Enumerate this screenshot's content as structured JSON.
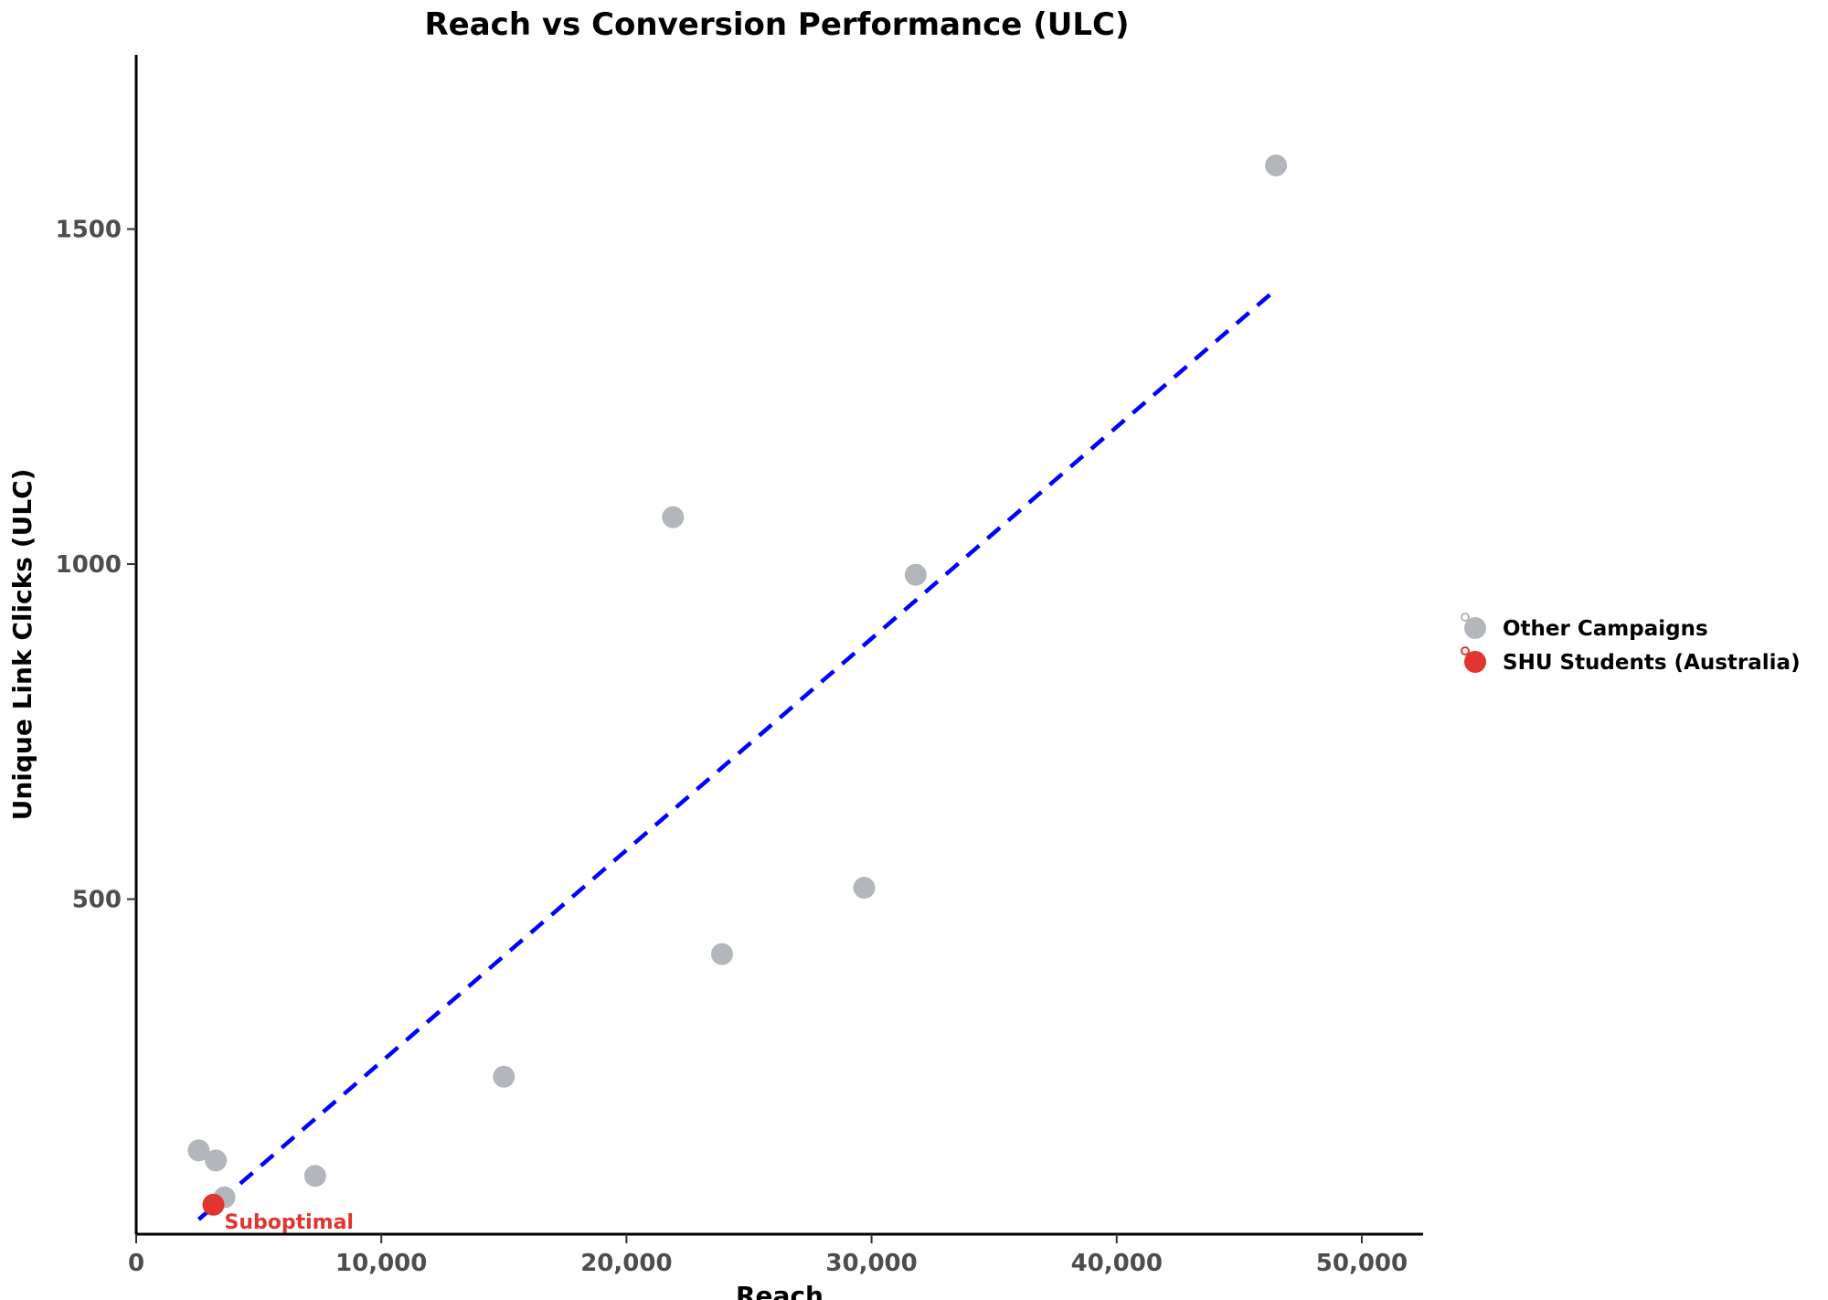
{
  "chart_data": {
    "type": "scatter",
    "title": "Reach vs Conversion Performance (ULC)",
    "xlabel": "Reach",
    "ylabel": "Unique Link Clicks (ULC)",
    "xlim": [
      0,
      52500
    ],
    "ylim": [
      0,
      1760
    ],
    "x_ticks": [
      0,
      10000,
      20000,
      30000,
      40000,
      50000
    ],
    "x_tick_labels": [
      "0",
      "10,000",
      "20,000",
      "30,000",
      "40,000",
      "50,000"
    ],
    "y_ticks": [
      500,
      1000,
      1500
    ],
    "y_tick_labels": [
      "500",
      "1000",
      "1500"
    ],
    "grid": false,
    "legend_position": "right",
    "series": [
      {
        "name": "Other Campaigns",
        "color": "#b3b7bb",
        "points": [
          {
            "x": 2550,
            "y": 125
          },
          {
            "x": 3250,
            "y": 110
          },
          {
            "x": 3600,
            "y": 55
          },
          {
            "x": 7300,
            "y": 87
          },
          {
            "x": 15000,
            "y": 235
          },
          {
            "x": 21900,
            "y": 1070
          },
          {
            "x": 23900,
            "y": 418
          },
          {
            "x": 29700,
            "y": 517
          },
          {
            "x": 31800,
            "y": 984
          },
          {
            "x": 46500,
            "y": 1595
          }
        ]
      },
      {
        "name": "SHU Students (Australia)",
        "color": "#e03530",
        "points": [
          {
            "x": 3150,
            "y": 44
          }
        ]
      }
    ],
    "trendline": {
      "style": "dashed",
      "color": "#0000ff",
      "points": [
        {
          "x": 2550,
          "y": 22
        },
        {
          "x": 46500,
          "y": 1410
        }
      ]
    },
    "annotations": [
      {
        "text": "Suboptimal",
        "x": 3150,
        "y": 44,
        "color": "#e03530"
      }
    ]
  }
}
